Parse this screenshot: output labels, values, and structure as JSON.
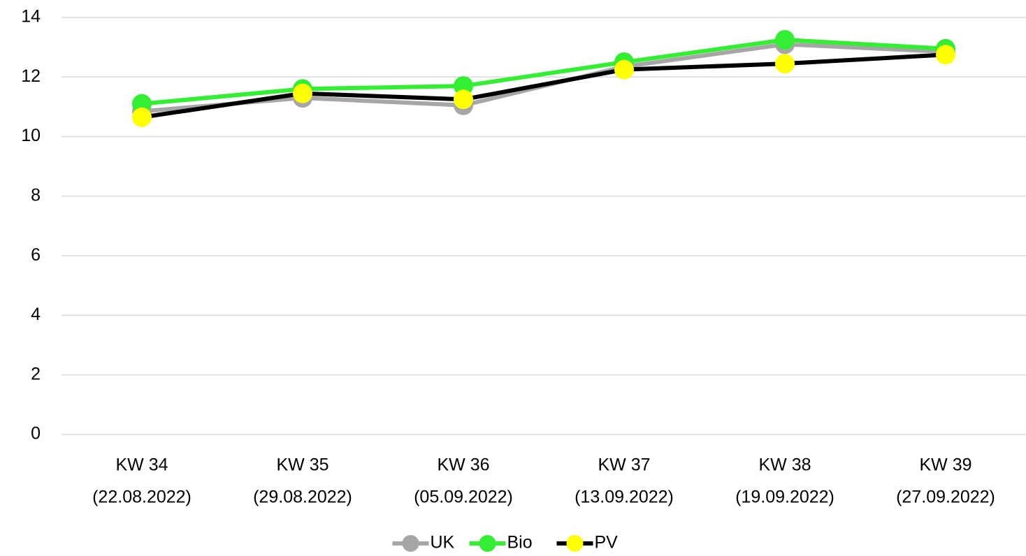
{
  "chart_data": {
    "type": "line",
    "categories": [
      [
        "KW 34",
        "(22.08.2022)"
      ],
      [
        "KW 35",
        "(29.08.2022)"
      ],
      [
        "KW 36",
        "(05.09.2022)"
      ],
      [
        "KW 37",
        "(13.09.2022)"
      ],
      [
        "KW 38",
        "(19.09.2022)"
      ],
      [
        "KW 39",
        "(27.09.2022)"
      ]
    ],
    "series": [
      {
        "name": "UK",
        "color": "#a6a6a6",
        "marker_color": "#a6a6a6",
        "values": [
          10.85,
          11.3,
          11.05,
          12.35,
          13.1,
          12.85
        ]
      },
      {
        "name": "Bio",
        "color": "#33ee33",
        "marker_color": "#33ee33",
        "values": [
          11.1,
          11.6,
          11.7,
          12.5,
          13.25,
          12.95
        ]
      },
      {
        "name": "PV",
        "color": "#000000",
        "marker_color": "#ffff00",
        "values": [
          10.65,
          11.45,
          11.25,
          12.25,
          12.45,
          12.75
        ]
      }
    ],
    "ylim": [
      0,
      14
    ],
    "yticks": [
      0,
      2,
      4,
      6,
      8,
      10,
      12,
      14
    ],
    "grid": true,
    "legend": "bottom"
  }
}
